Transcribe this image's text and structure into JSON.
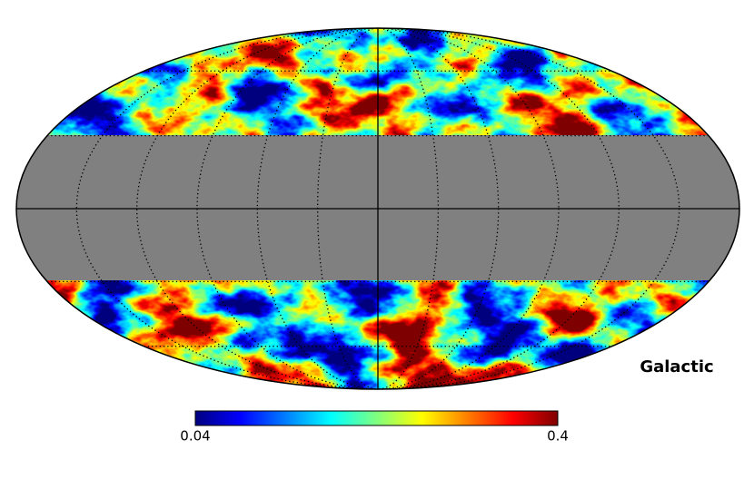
{
  "coordinate_system": "Galactic",
  "colorbar": {
    "range": [
      0.04,
      0.4
    ],
    "ticks": [
      0.04,
      0.4
    ]
  }
}
